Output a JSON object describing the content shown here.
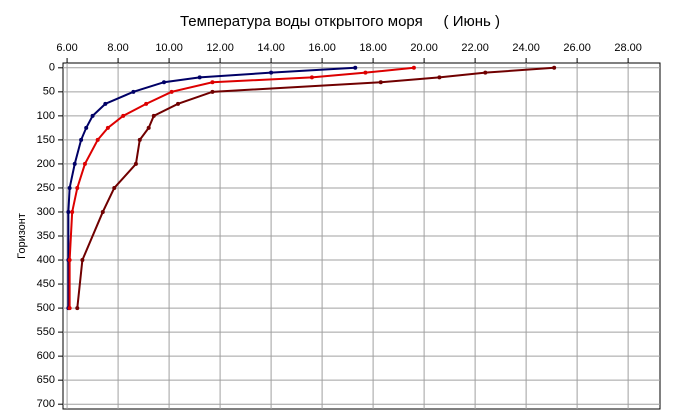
{
  "chart_data": {
    "type": "line",
    "title": "Температура воды открытого моря     ( Июнь )",
    "y_label": "Горизонт",
    "y": [
      0,
      10,
      20,
      30,
      50,
      75,
      100,
      125,
      150,
      200,
      250,
      300,
      400,
      500
    ],
    "series": [
      {
        "color": "#000066",
        "values": [
          17.3,
          14.0,
          11.2,
          9.8,
          8.6,
          7.5,
          7.0,
          6.75,
          6.55,
          6.3,
          6.1,
          6.05,
          6.05,
          6.05
        ]
      },
      {
        "color": "#dd0000",
        "values": [
          19.6,
          17.7,
          15.6,
          11.7,
          10.1,
          9.1,
          8.2,
          7.6,
          7.2,
          6.7,
          6.4,
          6.2,
          6.1,
          6.1
        ]
      },
      {
        "color": "#700000",
        "values": [
          25.1,
          22.4,
          20.6,
          18.3,
          11.7,
          10.35,
          9.4,
          9.2,
          8.85,
          8.7,
          7.85,
          7.4,
          6.6,
          6.4
        ]
      }
    ],
    "xlim": [
      5.84,
      29.25
    ],
    "xticks": [
      {
        "value": 6,
        "label": "6.00"
      },
      {
        "value": 8,
        "label": "8.00"
      },
      {
        "value": 10,
        "label": "10.00"
      },
      {
        "value": 12,
        "label": "12.00"
      },
      {
        "value": 14,
        "label": "14.00"
      },
      {
        "value": 16,
        "label": "16.00"
      },
      {
        "value": 18,
        "label": "18.00"
      },
      {
        "value": 20,
        "label": "20.00"
      },
      {
        "value": 22,
        "label": "22.00"
      },
      {
        "value": 24,
        "label": "24.00"
      },
      {
        "value": 26,
        "label": "26.00"
      },
      {
        "value": 28,
        "label": "28.00"
      }
    ],
    "ylim": [
      -10,
      710
    ],
    "yticks": [
      0,
      50,
      100,
      150,
      200,
      250,
      300,
      350,
      400,
      450,
      500,
      550,
      600,
      650,
      700
    ],
    "y_inverted": true,
    "grid": true
  }
}
